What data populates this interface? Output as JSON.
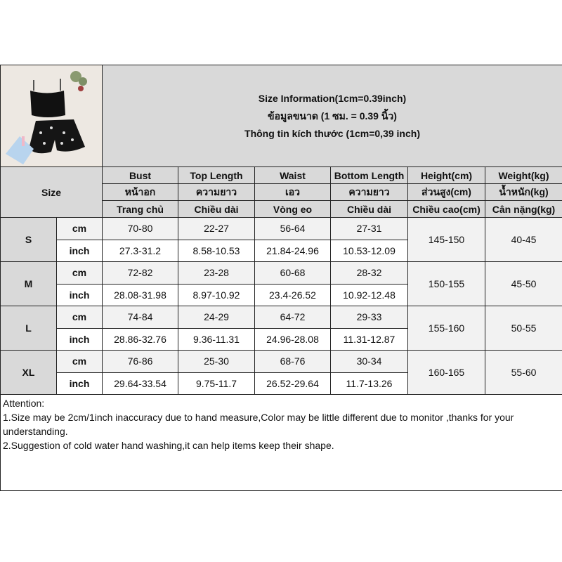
{
  "title_lines": [
    "Size Information(1cm=0.39inch)",
    "ข้อมูลขนาด (1 ซม. = 0.39 นิ้ว)",
    "Thông tin kích thước (1cm=0,39 inch)"
  ],
  "product_image": "black cami top with printed shorts",
  "size_label": "Size",
  "headers": [
    [
      "Bust",
      "Top Length",
      "Waist",
      "Bottom Length",
      "Height(cm)",
      "Weight(kg)"
    ],
    [
      "หน้าอก",
      "ความยาว",
      "เอว",
      "ความยาว",
      "ส่วนสูง(cm)",
      "น้ำหนัก(kg)"
    ],
    [
      "Trang chủ",
      "Chiều dài",
      "Vòng eo",
      "Chiều dài",
      "Chiều cao(cm)",
      "Cân nặng(kg)"
    ]
  ],
  "units": [
    "cm",
    "inch"
  ],
  "sizes": [
    {
      "size": "S",
      "cm": [
        "70-80",
        "22-27",
        "56-64",
        "27-31"
      ],
      "inch": [
        "27.3-31.2",
        "8.58-10.53",
        "21.84-24.96",
        "10.53-12.09"
      ],
      "height": "145-150",
      "weight": "40-45"
    },
    {
      "size": "M",
      "cm": [
        "72-82",
        "23-28",
        "60-68",
        "28-32"
      ],
      "inch": [
        "28.08-31.98",
        "8.97-10.92",
        "23.4-26.52",
        "10.92-12.48"
      ],
      "height": "150-155",
      "weight": "45-50"
    },
    {
      "size": "L",
      "cm": [
        "74-84",
        "24-29",
        "64-72",
        "29-33"
      ],
      "inch": [
        "28.86-32.76",
        "9.36-11.31",
        "24.96-28.08",
        "11.31-12.87"
      ],
      "height": "155-160",
      "weight": "50-55"
    },
    {
      "size": "XL",
      "cm": [
        "76-86",
        "25-30",
        "68-76",
        "30-34"
      ],
      "inch": [
        "29.64-33.54",
        "9.75-11.7",
        "26.52-29.64",
        "11.7-13.26"
      ],
      "height": "160-165",
      "weight": "55-60"
    }
  ],
  "attention": [
    "Attention:",
    "1.Size may be 2cm/1inch inaccuracy due to hand measure,Color may be little different due to monitor ,thanks for your understanding.",
    "2.Suggestion of cold water hand washing,it can help items keep their shape."
  ]
}
